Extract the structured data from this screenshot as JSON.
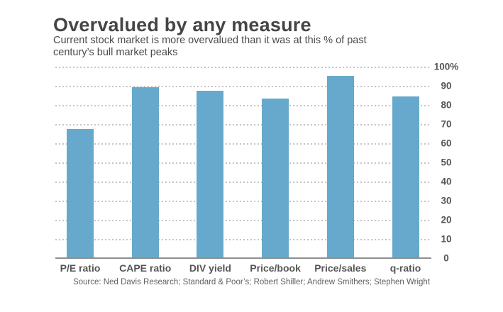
{
  "title": "Overvalued by any measure",
  "subtitle": {
    "lines": [
      "Current stock market is more overvalued than it was at this % of past",
      "century’s bull market peaks"
    ]
  },
  "source": "Source: Ned Davis Research; Standard & Poor’s; Robert Shiller; Andrew Smithers; Stephen Wright",
  "colors": {
    "bar": "#67a9cc",
    "gridline": "#c4c4c4",
    "baseline": "#8f8f8f",
    "title_text": "#454545",
    "axis_text": "#555555",
    "source_text": "#5f5f5f"
  },
  "chart_data": {
    "type": "bar",
    "title": "Overvalued by any measure",
    "subtitle": "Current stock market is more overvalued than it was at this % of past century’s bull market peaks",
    "categories": [
      "P/E ratio",
      "CAPE ratio",
      "DIV yield",
      "Price/book",
      "Price/sales",
      "q-ratio"
    ],
    "values": [
      67,
      89,
      87,
      83,
      95,
      84
    ],
    "xlabel": "",
    "ylabel": "",
    "ylim": [
      0,
      100
    ],
    "ytick_interval": 10,
    "ytick_labels": [
      "100%",
      "90",
      "80",
      "70",
      "60",
      "50",
      "40",
      "30",
      "20",
      "10",
      "0"
    ],
    "grid": "horizontal-dotted",
    "legend": "none",
    "y_axis_side": "right",
    "bar_color": "#67a9cc"
  }
}
